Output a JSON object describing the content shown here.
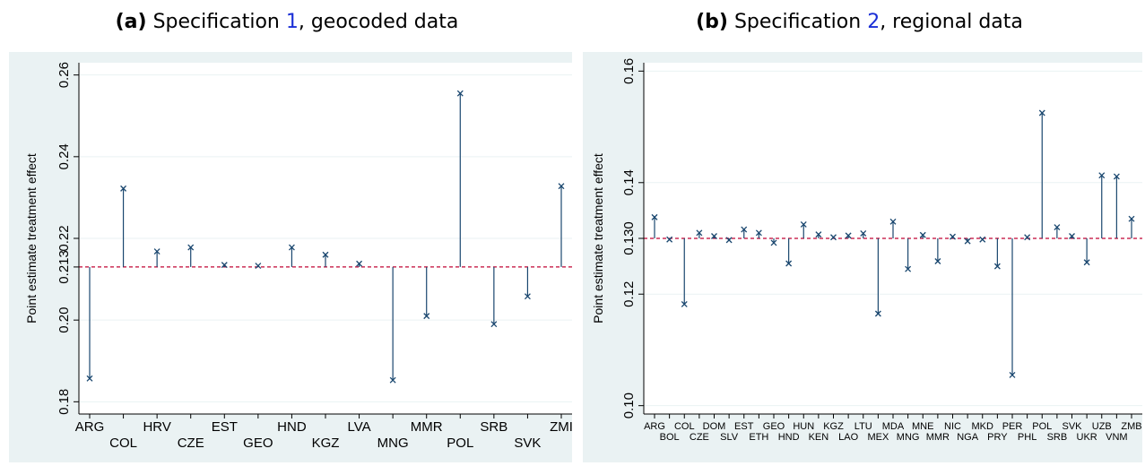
{
  "captions": [
    {
      "label": "(a)",
      "prefix": "Specification ",
      "ref": "1",
      "suffix": ", geocoded data"
    },
    {
      "label": "(b)",
      "prefix": "Specification ",
      "ref": "2",
      "suffix": ", regional data"
    }
  ],
  "colors": {
    "outer_bg": "#eaf2f3",
    "plot_bg": "#ffffff",
    "stem": "#1a476f",
    "reference_line": "#c10534"
  },
  "chart_data": [
    {
      "type": "scatter",
      "style": "stem plot with markers 'x'",
      "ylabel": "Point estimate treatment effect",
      "ylim": [
        0.177,
        0.263
      ],
      "yticks": [
        "0.18",
        "0.20",
        "0.213",
        "0.22",
        "0.24",
        "0.26"
      ],
      "ytick_values": [
        0.18,
        0.2,
        0.213,
        0.22,
        0.24,
        0.26
      ],
      "reference_value": 0.213,
      "grid": true,
      "categories": [
        "ARG",
        "COL",
        "HRV",
        "CZE",
        "EST",
        "GEO",
        "HND",
        "KGZ",
        "LVA",
        "MNG",
        "MMR",
        "POL",
        "SRB",
        "SVK",
        "ZMB"
      ],
      "tick_labels": [
        "ARG",
        "COL",
        "HRV",
        "CZE",
        "EST",
        "GEO",
        "HND",
        "KGZ",
        "LVA",
        "MNG",
        "MMR",
        "POL",
        "SRB",
        "SVK",
        "ZMI"
      ],
      "values": [
        0.1857,
        0.2322,
        0.2168,
        0.2178,
        0.2135,
        0.2133,
        0.2178,
        0.216,
        0.2138,
        0.1853,
        0.201,
        0.2555,
        0.199,
        0.2058,
        0.2328
      ]
    },
    {
      "type": "scatter",
      "style": "stem plot with markers 'x'",
      "ylabel": "Point estimate treatment effect",
      "ylim": [
        0.0985,
        0.1615
      ],
      "yticks": [
        "0.10",
        "0.12",
        "0.130",
        "0.14",
        "0.16"
      ],
      "ytick_values": [
        0.1,
        0.12,
        0.13,
        0.14,
        0.16
      ],
      "reference_value": 0.13,
      "grid": true,
      "categories": [
        "ARG",
        "BOL",
        "COL",
        "CZE",
        "DOM",
        "SLV",
        "EST",
        "ETH",
        "GEO",
        "HND",
        "HUN",
        "KEN",
        "KGZ",
        "LAO",
        "LTU",
        "MEX",
        "MDA",
        "MNG",
        "MNE",
        "MMR",
        "NIC",
        "NGA",
        "MKD",
        "PRY",
        "PER",
        "PHL",
        "POL",
        "SRB",
        "SVK",
        "UKR",
        "UZB",
        "VNM",
        "ZMB"
      ],
      "values": [
        0.1338,
        0.1298,
        0.1182,
        0.131,
        0.1304,
        0.1297,
        0.1316,
        0.131,
        0.1292,
        0.1255,
        0.1325,
        0.1307,
        0.1302,
        0.1305,
        0.1309,
        0.1165,
        0.133,
        0.1245,
        0.1306,
        0.1259,
        0.1303,
        0.1295,
        0.1298,
        0.125,
        0.1055,
        0.1302,
        0.1525,
        0.132,
        0.1304,
        0.1257,
        0.1413,
        0.1411,
        0.1335
      ]
    }
  ]
}
